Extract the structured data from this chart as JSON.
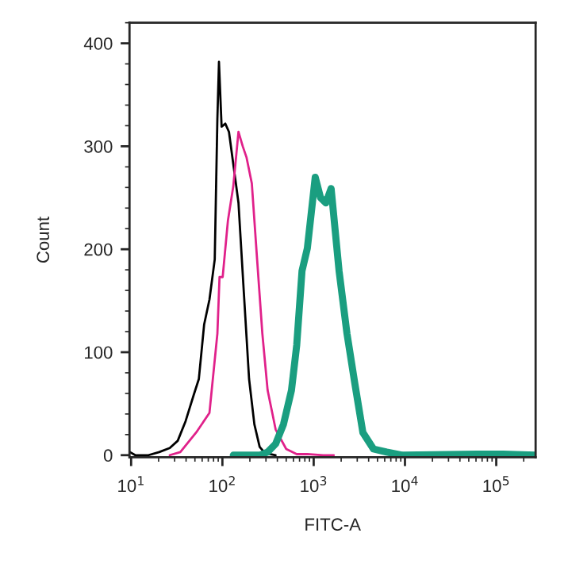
{
  "chart_data": {
    "type": "line",
    "xlabel": "FITC-A",
    "ylabel": "Count",
    "log": "x",
    "grid": false,
    "legend": false,
    "xlim": [
      9.6,
      270000
    ],
    "ylim": [
      -2,
      420
    ],
    "xticks": [
      {
        "value": 10,
        "label": "10$^{1}$"
      },
      {
        "value": 100,
        "label": "10$^{2}$"
      },
      {
        "value": 1000,
        "label": "10$^{3}$"
      },
      {
        "value": 10000,
        "label": "10$^{4}$"
      },
      {
        "value": 100000,
        "label": "10$^{5}$"
      }
    ],
    "yticks": [
      0,
      100,
      200,
      300,
      400
    ],
    "series": [
      {
        "color": "#000000",
        "x": [
          9.7,
          11.1,
          15.5,
          20.3,
          26.5,
          32.4,
          39.5,
          48.3,
          55.2,
          63.1,
          72.1,
          82.4,
          88.1,
          91.7,
          98,
          107.6,
          118,
          131.5,
          150,
          172,
          196,
          224,
          256,
          293,
          383
        ],
        "values": [
          3,
          0,
          0,
          3,
          7,
          14,
          33,
          58,
          74,
          127,
          151,
          190,
          327,
          382,
          319,
          322,
          314,
          283,
          245,
          157,
          74,
          30,
          8,
          2,
          0
        ]
      },
      {
        "color": "#e0218a",
        "x": [
          26.5,
          34.6,
          51.6,
          72.1,
          88.1,
          93,
          100.7,
          115,
          131.5,
          150,
          167,
          184,
          210,
          240,
          274,
          313,
          383,
          500,
          652,
          852,
          1271,
          1660
        ],
        "values": [
          0,
          3,
          22,
          41,
          118,
          173,
          173,
          228,
          261,
          314,
          300,
          289,
          264,
          190,
          118,
          63,
          25,
          6,
          1,
          1,
          0,
          0
        ]
      },
      {
        "color": "#1a9e80",
        "x": [
          131.5,
          256,
          313,
          383,
          467,
          571,
          652,
          745,
          852,
          1040,
          1190,
          1360,
          1553,
          1897,
          2317,
          2831,
          3459,
          4519,
          6310,
          9420,
          61100,
          119000,
          265000
        ],
        "values": [
          0,
          0,
          3,
          11,
          30,
          63,
          107,
          179,
          201,
          270,
          250,
          245,
          259,
          179,
          118,
          69,
          22,
          6,
          3,
          0,
          1,
          1,
          0
        ]
      }
    ]
  }
}
